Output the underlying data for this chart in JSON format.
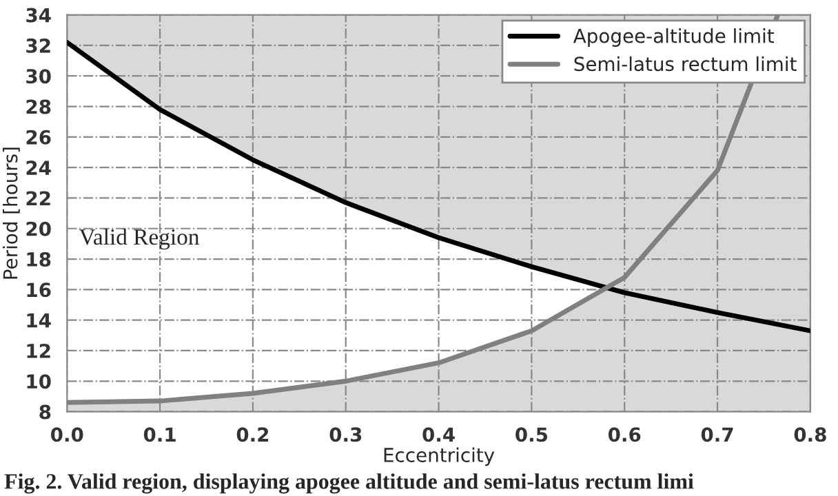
{
  "chart_data": {
    "type": "line",
    "xlabel": "Eccentricity",
    "ylabel": "Period [hours]",
    "x": [
      0.0,
      0.1,
      0.2,
      0.3,
      0.4,
      0.5,
      0.6,
      0.7,
      0.8
    ],
    "series": [
      {
        "name": "Apogee-altitude limit",
        "color": "#000000",
        "values": [
          32.2,
          27.8,
          24.5,
          21.7,
          19.4,
          17.5,
          15.8,
          14.5,
          13.3
        ]
      },
      {
        "type": "area",
        "color": "#ffffff",
        "x": [
          0.0,
          0.1,
          0.2,
          0.3,
          0.4,
          0.5,
          0.58
        ],
        "values": [
          32.2,
          27.8,
          24.5,
          21.7,
          19.4,
          17.5,
          16.2
        ]
      },
      {
        "name": "Semi-latus rectum limit",
        "type": "area",
        "color": "#808080",
        "x": [
          0.0,
          0.1,
          0.2,
          0.3,
          0.4,
          0.5,
          0.6,
          0.7,
          0.765
        ],
        "values": [
          8.6,
          8.7,
          9.2,
          10.0,
          11.2,
          13.3,
          16.8,
          23.8,
          34.0
        ]
      }
    ],
    "xlim": [
      0.0,
      0.8
    ],
    "xticks": [
      {
        "value": 0.0,
        "label": "0.0"
      },
      0.1,
      0.2,
      0.3,
      0.4,
      0.5,
      0.6,
      0.7,
      0.8
    ],
    "ylim": [
      8,
      34
    ],
    "yticks": [
      8,
      10,
      12,
      14,
      16,
      18,
      20,
      22,
      24,
      26,
      28,
      30,
      32,
      34
    ],
    "grid": true,
    "legend": "top right",
    "marker": "none",
    "line_style": "solid",
    "annotations": [
      "Valid Region",
      "Fig. 2. Valid region, displaying apogee altitude and semi-latus rectum limi"
    ]
  }
}
